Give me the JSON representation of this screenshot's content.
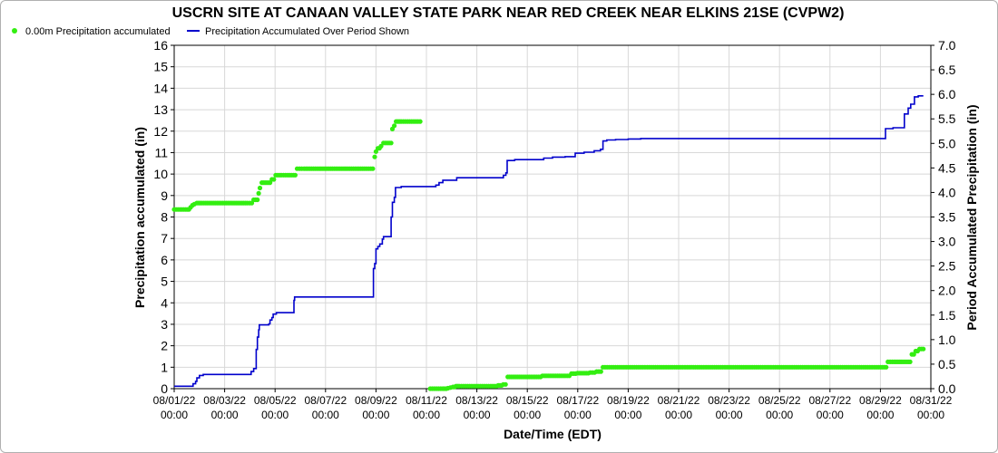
{
  "chart_data": {
    "type": "line",
    "title": "USCRN SITE AT CANAAN VALLEY STATE PARK NEAR RED CREEK NEAR ELKINS 21SE (CVPW2)",
    "xlabel": "Date/Time (EDT)",
    "ylabel_left": "Precipitation accumulated (in)",
    "ylabel_right": "Period Accumulated Precipitation (in)",
    "x_range": [
      "08/01/22 00:00",
      "08/31/22 00:00"
    ],
    "ylim_left": [
      0,
      16
    ],
    "ylim_right": [
      0,
      7.0
    ],
    "grid": true,
    "legend_position": "top-left",
    "x_ticks": [
      [
        "08/01/22",
        "00:00"
      ],
      [
        "08/03/22",
        "00:00"
      ],
      [
        "08/05/22",
        "00:00"
      ],
      [
        "08/07/22",
        "00:00"
      ],
      [
        "08/09/22",
        "00:00"
      ],
      [
        "08/11/22",
        "00:00"
      ],
      [
        "08/13/22",
        "00:00"
      ],
      [
        "08/15/22",
        "00:00"
      ],
      [
        "08/17/22",
        "00:00"
      ],
      [
        "08/19/22",
        "00:00"
      ],
      [
        "08/21/22",
        "00:00"
      ],
      [
        "08/23/22",
        "00:00"
      ],
      [
        "08/25/22",
        "00:00"
      ],
      [
        "08/27/22",
        "00:00"
      ],
      [
        "08/29/22",
        "00:00"
      ],
      [
        "08/31/22",
        "00:00"
      ]
    ],
    "y_ticks_left": [
      "0",
      "1",
      "2",
      "3",
      "4",
      "5",
      "6",
      "7",
      "8",
      "9",
      "10",
      "11",
      "12",
      "13",
      "14",
      "15",
      "16"
    ],
    "y_ticks_right": [
      "0.0",
      "0.5",
      "1.0",
      "1.5",
      "2.0",
      "2.5",
      "3.0",
      "3.5",
      "4.0",
      "4.5",
      "5.0",
      "5.5",
      "6.0",
      "6.5",
      "7.0"
    ],
    "series": [
      {
        "name": "0.00m Precipitation accumulated",
        "axis": "left",
        "style": "points",
        "color": "#33ee11",
        "points": [
          [
            0.0,
            8.35
          ],
          [
            0.45,
            8.35
          ],
          [
            0.9,
            8.35
          ],
          [
            1.3,
            8.45
          ],
          [
            1.45,
            8.55
          ],
          [
            1.6,
            8.6
          ],
          [
            1.8,
            8.65
          ],
          [
            2.2,
            8.65
          ],
          [
            2.8,
            8.65
          ],
          [
            3.4,
            8.65
          ],
          [
            4.0,
            8.65
          ],
          [
            4.6,
            8.65
          ],
          [
            5.2,
            8.65
          ],
          [
            5.8,
            8.65
          ],
          [
            6.15,
            8.65
          ],
          [
            6.3,
            8.8
          ],
          [
            6.6,
            8.8
          ],
          [
            6.7,
            9.1
          ],
          [
            6.8,
            9.35
          ],
          [
            6.95,
            9.6
          ],
          [
            7.2,
            9.6
          ],
          [
            7.6,
            9.6
          ],
          [
            7.75,
            9.75
          ],
          [
            7.9,
            9.75
          ],
          [
            8.05,
            9.95
          ],
          [
            8.5,
            9.95
          ],
          [
            9.0,
            9.95
          ],
          [
            9.6,
            9.95
          ],
          [
            9.75,
            10.25
          ],
          [
            10.3,
            10.25
          ],
          [
            10.9,
            10.25
          ],
          [
            11.5,
            10.25
          ],
          [
            12.1,
            10.25
          ],
          [
            12.7,
            10.25
          ],
          [
            13.3,
            10.25
          ],
          [
            13.9,
            10.25
          ],
          [
            14.5,
            10.25
          ],
          [
            15.1,
            10.25
          ],
          [
            15.75,
            10.25
          ],
          [
            15.9,
            10.8
          ],
          [
            16.0,
            11.05
          ],
          [
            16.15,
            11.2
          ],
          [
            16.4,
            11.3
          ],
          [
            16.6,
            11.45
          ],
          [
            16.9,
            11.45
          ],
          [
            17.2,
            11.45
          ],
          [
            17.3,
            12.1
          ],
          [
            17.45,
            12.25
          ],
          [
            17.6,
            12.45
          ],
          [
            18.0,
            12.45
          ],
          [
            18.5,
            12.45
          ],
          [
            19.0,
            12.45
          ],
          [
            19.5,
            12.45
          ],
          [
            20.3,
            0.0
          ],
          [
            20.8,
            0.0
          ],
          [
            21.3,
            0.0
          ],
          [
            21.7,
            0.02
          ],
          [
            21.9,
            0.05
          ],
          [
            22.1,
            0.08
          ],
          [
            22.35,
            0.12
          ],
          [
            22.6,
            0.12
          ],
          [
            23.1,
            0.12
          ],
          [
            23.6,
            0.12
          ],
          [
            24.1,
            0.12
          ],
          [
            24.6,
            0.12
          ],
          [
            25.1,
            0.12
          ],
          [
            25.7,
            0.15
          ],
          [
            26.1,
            0.2
          ],
          [
            26.45,
            0.55
          ],
          [
            26.9,
            0.55
          ],
          [
            27.5,
            0.55
          ],
          [
            28.0,
            0.55
          ],
          [
            28.6,
            0.55
          ],
          [
            29.2,
            0.6
          ],
          [
            29.8,
            0.6
          ],
          [
            30.4,
            0.6
          ],
          [
            31.0,
            0.6
          ],
          [
            31.5,
            0.7
          ],
          [
            32.0,
            0.72
          ],
          [
            32.5,
            0.72
          ],
          [
            33.0,
            0.75
          ],
          [
            33.5,
            0.8
          ],
          [
            34.0,
            1.0
          ],
          [
            34.5,
            1.0
          ],
          [
            35.0,
            1.0
          ],
          [
            35.5,
            1.0
          ],
          [
            36.0,
            1.0
          ],
          [
            36.5,
            1.0
          ],
          [
            37.0,
            1.0
          ],
          [
            37.5,
            1.0
          ],
          [
            38.0,
            1.0
          ],
          [
            38.5,
            1.0
          ],
          [
            39.0,
            1.0
          ],
          [
            39.5,
            1.0
          ],
          [
            40.0,
            1.0
          ],
          [
            40.5,
            1.0
          ],
          [
            41.0,
            1.0
          ],
          [
            41.5,
            1.0
          ],
          [
            42.0,
            1.0
          ],
          [
            42.5,
            1.0
          ],
          [
            43.0,
            1.0
          ],
          [
            43.5,
            1.0
          ],
          [
            44.0,
            1.0
          ],
          [
            44.5,
            1.0
          ],
          [
            45.0,
            1.0
          ],
          [
            45.5,
            1.0
          ],
          [
            46.0,
            1.0
          ],
          [
            46.5,
            1.0
          ],
          [
            47.0,
            1.0
          ],
          [
            47.5,
            1.0
          ],
          [
            48.0,
            1.0
          ],
          [
            48.5,
            1.0
          ],
          [
            49.0,
            1.0
          ],
          [
            49.5,
            1.0
          ],
          [
            50.0,
            1.0
          ],
          [
            50.5,
            1.0
          ],
          [
            51.0,
            1.0
          ],
          [
            51.5,
            1.0
          ],
          [
            52.0,
            1.0
          ],
          [
            52.5,
            1.0
          ],
          [
            53.0,
            1.0
          ],
          [
            53.5,
            1.0
          ],
          [
            54.0,
            1.0
          ],
          [
            54.5,
            1.0
          ],
          [
            55.0,
            1.0
          ],
          [
            55.5,
            1.0
          ],
          [
            56.0,
            1.0
          ],
          [
            56.6,
            1.25
          ],
          [
            57.1,
            1.25
          ],
          [
            57.7,
            1.25
          ],
          [
            58.2,
            1.25
          ],
          [
            58.5,
            1.6
          ],
          [
            58.8,
            1.75
          ],
          [
            59.1,
            1.85
          ],
          [
            59.4,
            1.85
          ]
        ]
      },
      {
        "name": "Precipitation Accumulated Over Period Shown",
        "axis": "right",
        "style": "step-line",
        "color": "#0000cc",
        "points": [
          [
            0.0,
            0.05
          ],
          [
            0.8,
            0.05
          ],
          [
            1.0,
            0.05
          ],
          [
            1.4,
            0.05
          ],
          [
            1.5,
            0.1
          ],
          [
            1.7,
            0.15
          ],
          [
            1.8,
            0.22
          ],
          [
            2.0,
            0.27
          ],
          [
            2.3,
            0.29
          ],
          [
            3.3,
            0.29
          ],
          [
            4.5,
            0.29
          ],
          [
            5.6,
            0.29
          ],
          [
            6.0,
            0.29
          ],
          [
            6.1,
            0.35
          ],
          [
            6.3,
            0.41
          ],
          [
            6.45,
            0.41
          ],
          [
            6.5,
            0.8
          ],
          [
            6.6,
            1.05
          ],
          [
            6.7,
            1.2
          ],
          [
            6.75,
            1.3
          ],
          [
            7.3,
            1.3
          ],
          [
            7.5,
            1.32
          ],
          [
            7.6,
            1.4
          ],
          [
            7.75,
            1.45
          ],
          [
            7.85,
            1.52
          ],
          [
            8.1,
            1.55
          ],
          [
            8.9,
            1.55
          ],
          [
            9.0,
            1.55
          ],
          [
            9.2,
            1.55
          ],
          [
            9.5,
            1.8
          ],
          [
            9.55,
            1.87
          ],
          [
            10.0,
            1.87
          ],
          [
            11.5,
            1.87
          ],
          [
            13.0,
            1.87
          ],
          [
            14.0,
            1.87
          ],
          [
            15.0,
            1.87
          ],
          [
            15.7,
            1.87
          ],
          [
            15.8,
            2.45
          ],
          [
            15.9,
            2.55
          ],
          [
            16.0,
            2.85
          ],
          [
            16.15,
            2.9
          ],
          [
            16.3,
            2.95
          ],
          [
            16.5,
            3.05
          ],
          [
            16.6,
            3.1
          ],
          [
            17.1,
            3.1
          ],
          [
            17.2,
            3.5
          ],
          [
            17.3,
            3.8
          ],
          [
            17.45,
            3.9
          ],
          [
            17.55,
            4.1
          ],
          [
            18.0,
            4.12
          ],
          [
            19.0,
            4.12
          ],
          [
            20.0,
            4.12
          ],
          [
            20.5,
            4.12
          ],
          [
            20.75,
            4.15
          ],
          [
            21.0,
            4.2
          ],
          [
            21.3,
            4.25
          ],
          [
            21.6,
            4.25
          ],
          [
            22.0,
            4.25
          ],
          [
            22.4,
            4.3
          ],
          [
            23.5,
            4.3
          ],
          [
            24.5,
            4.3
          ],
          [
            25.7,
            4.3
          ],
          [
            26.1,
            4.35
          ],
          [
            26.3,
            4.4
          ],
          [
            26.4,
            4.65
          ],
          [
            27.0,
            4.67
          ],
          [
            28.0,
            4.67
          ],
          [
            29.0,
            4.67
          ],
          [
            29.3,
            4.7
          ],
          [
            30.0,
            4.72
          ],
          [
            31.0,
            4.73
          ],
          [
            31.6,
            4.73
          ],
          [
            31.8,
            4.8
          ],
          [
            32.5,
            4.82
          ],
          [
            33.1,
            4.82
          ],
          [
            33.3,
            4.85
          ],
          [
            33.8,
            4.88
          ],
          [
            34.0,
            5.05
          ],
          [
            34.3,
            5.07
          ],
          [
            35.0,
            5.08
          ],
          [
            36.0,
            5.09
          ],
          [
            37.0,
            5.1
          ],
          [
            38.0,
            5.1
          ],
          [
            39.0,
            5.1
          ],
          [
            40.0,
            5.1
          ],
          [
            41.0,
            5.1
          ],
          [
            42.0,
            5.1
          ],
          [
            43.0,
            5.1
          ],
          [
            44.0,
            5.1
          ],
          [
            45.0,
            5.1
          ],
          [
            46.0,
            5.1
          ],
          [
            47.0,
            5.1
          ],
          [
            48.0,
            5.1
          ],
          [
            49.0,
            5.1
          ],
          [
            50.0,
            5.1
          ],
          [
            51.0,
            5.1
          ],
          [
            52.0,
            5.1
          ],
          [
            53.0,
            5.1
          ],
          [
            54.0,
            5.1
          ],
          [
            55.0,
            5.1
          ],
          [
            56.0,
            5.1
          ],
          [
            56.3,
            5.1
          ],
          [
            56.4,
            5.3
          ],
          [
            57.0,
            5.32
          ],
          [
            57.6,
            5.32
          ],
          [
            57.8,
            5.32
          ],
          [
            57.9,
            5.6
          ],
          [
            58.2,
            5.72
          ],
          [
            58.4,
            5.8
          ],
          [
            58.7,
            5.95
          ],
          [
            59.0,
            5.97
          ],
          [
            59.4,
            5.97
          ]
        ]
      }
    ]
  }
}
